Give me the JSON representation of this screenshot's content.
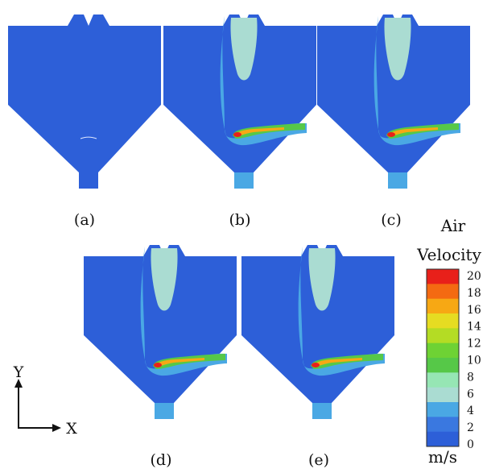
{
  "panels": [
    {
      "id": "a",
      "label": "(a)"
    },
    {
      "id": "b",
      "label": "(b)"
    },
    {
      "id": "c",
      "label": "(c)"
    },
    {
      "id": "d",
      "label": "(d)"
    },
    {
      "id": "e",
      "label": "(e)"
    }
  ],
  "axes": {
    "y_label": "Y",
    "x_label": "X"
  },
  "colorbar": {
    "title_line1": "Air",
    "title_line2": "Velocity",
    "unit": "m/s",
    "ticks": [
      "20",
      "18",
      "16",
      "14",
      "12",
      "10",
      "8",
      "6",
      "4",
      "2",
      "0"
    ],
    "colors_top_to_bottom": [
      "#e8201a",
      "#f46a12",
      "#f7a814",
      "#e6dc22",
      "#b4dc24",
      "#6ed234",
      "#56c848",
      "#96e6b4",
      "#aadcd2",
      "#4aa8e4",
      "#3a78e0",
      "#2d5fd8"
    ]
  },
  "palette": {
    "background": "#2d5fd8",
    "plume_outer": "#4aa8e4",
    "plume_inner": "#aadcd2",
    "jet_core": "#e8201a"
  }
}
